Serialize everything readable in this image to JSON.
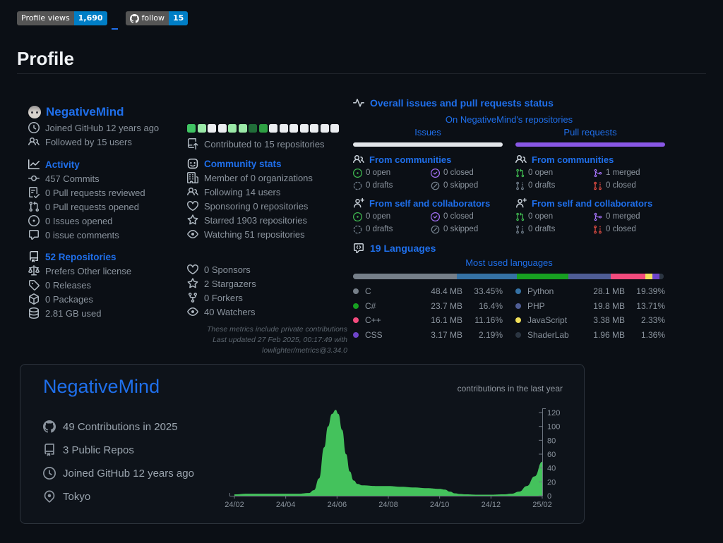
{
  "badges": {
    "views_label": "Profile views",
    "views_value": "1,690",
    "follow_label": "follow",
    "follow_value": "15"
  },
  "page": {
    "title": "Profile"
  },
  "profile": {
    "name": "NegativeMind",
    "joined": "Joined GitHub 12 years ago",
    "followers": "Followed by 15 users"
  },
  "activity": {
    "title": "Activity",
    "items": [
      {
        "label": "457 Commits"
      },
      {
        "label": "0 Pull requests reviewed"
      },
      {
        "label": "0 Pull requests opened"
      },
      {
        "label": "0 Issues opened"
      },
      {
        "label": "0 issue comments"
      }
    ]
  },
  "repositories": {
    "title": "52 Repositories",
    "items": [
      {
        "label": "Prefers Other license"
      },
      {
        "label": "0 Releases"
      },
      {
        "label": "0 Packages"
      },
      {
        "label": "2.81 GB used"
      }
    ]
  },
  "calendar": {
    "label": "Contributed to 15 repositories",
    "colors": [
      "#40c463",
      "#9be9a8",
      "#ebedf0",
      "#ebedf0",
      "#9be9a8",
      "#9be9a8",
      "#216e39",
      "#2ea043",
      "#ebedf0",
      "#ebedf0",
      "#ebedf0",
      "#ebedf0",
      "#ebedf0",
      "#ebedf0",
      "#ebedf0"
    ]
  },
  "community": {
    "title": "Community stats",
    "items": [
      {
        "label": "Member of 0 organizations"
      },
      {
        "label": "Following 14 users"
      },
      {
        "label": "Sponsoring 0 repositories"
      },
      {
        "label": "Starred 1903 repositories"
      },
      {
        "label": "Watching 51 repositories"
      }
    ]
  },
  "engagement": {
    "items": [
      {
        "label": "0 Sponsors"
      },
      {
        "label": "2 Stargazers"
      },
      {
        "label": "0 Forkers"
      },
      {
        "label": "40 Watchers"
      }
    ]
  },
  "footnotes": {
    "line1": "These metrics include private contributions",
    "line2": "Last updated 27 Feb 2025, 00:17:49 with lowlighter/metrics@3.34.0"
  },
  "status": {
    "title": "Overall issues and pull requests status",
    "subtitle": "On NegativeMind's repositories",
    "columns": [
      {
        "label": "Issues",
        "bar_color": "#e3e6ea",
        "groups": [
          {
            "title": "From communities",
            "stats": [
              {
                "label": "0 open"
              },
              {
                "label": "0 closed"
              },
              {
                "label": "0 drafts"
              },
              {
                "label": "0 skipped"
              }
            ]
          },
          {
            "title": "From self and collaborators",
            "stats": [
              {
                "label": "0 open"
              },
              {
                "label": "0 closed"
              },
              {
                "label": "0 drafts"
              },
              {
                "label": "0 skipped"
              }
            ]
          }
        ]
      },
      {
        "label": "Pull requests",
        "bar_color": "#8957e5",
        "groups": [
          {
            "title": "From communities",
            "stats": [
              {
                "label": "0 open"
              },
              {
                "label": "1 merged"
              },
              {
                "label": "0 drafts"
              },
              {
                "label": "0 closed"
              }
            ]
          },
          {
            "title": "From self and collaborators",
            "stats": [
              {
                "label": "0 open"
              },
              {
                "label": "0 merged"
              },
              {
                "label": "0 drafts"
              },
              {
                "label": "0 closed"
              }
            ]
          }
        ]
      }
    ]
  },
  "languages": {
    "title": "19 Languages",
    "subtitle": "Most used languages",
    "items": [
      {
        "name": "C",
        "color": "#767f89",
        "size": "48.4 MB",
        "percent": "33.45%",
        "value": 33.45
      },
      {
        "name": "Python",
        "color": "#3572a5",
        "size": "28.1 MB",
        "percent": "19.39%",
        "value": 19.39
      },
      {
        "name": "C#",
        "color": "#17a021",
        "size": "23.7 MB",
        "percent": "16.4%",
        "value": 16.4
      },
      {
        "name": "PHP",
        "color": "#4f5d95",
        "size": "19.8 MB",
        "percent": "13.71%",
        "value": 13.71
      },
      {
        "name": "C++",
        "color": "#f34b7d",
        "size": "16.1 MB",
        "percent": "11.16%",
        "value": 11.16
      },
      {
        "name": "JavaScript",
        "color": "#f1e05a",
        "size": "3.38 MB",
        "percent": "2.33%",
        "value": 2.33
      },
      {
        "name": "CSS",
        "color": "#6e45c9",
        "size": "3.17 MB",
        "percent": "2.19%",
        "value": 2.19
      },
      {
        "name": "ShaderLab",
        "color": "#2b3541",
        "size": "1.96 MB",
        "percent": "1.36%",
        "value": 1.36
      }
    ]
  },
  "card": {
    "name": "NegativeMind",
    "stats": [
      {
        "label": "49 Contributions in 2025"
      },
      {
        "label": "3 Public Repos"
      },
      {
        "label": "Joined GitHub 12 years ago"
      },
      {
        "label": "Tokyo"
      }
    ],
    "chart_label": "contributions in the last year"
  },
  "chart_data": {
    "type": "area",
    "title": "contributions in the last year",
    "x_ticks": [
      "24/02",
      "24/04",
      "24/06",
      "24/08",
      "24/10",
      "24/12",
      "25/02"
    ],
    "y_ticks": [
      0,
      20,
      40,
      60,
      80,
      100,
      120
    ],
    "ylim": [
      0,
      130
    ],
    "x_unit": "months since 24/02",
    "grid": false,
    "legend": "none",
    "series": [
      {
        "name": "contributions",
        "color": "#44c25c",
        "points": [
          [
            0,
            2
          ],
          [
            0.5,
            3
          ],
          [
            1,
            3
          ],
          [
            1.5,
            3
          ],
          [
            2,
            3
          ],
          [
            2.5,
            3
          ],
          [
            2.9,
            4
          ],
          [
            3.1,
            8
          ],
          [
            3.3,
            25
          ],
          [
            3.5,
            70
          ],
          [
            3.65,
            100
          ],
          [
            3.8,
            118
          ],
          [
            3.95,
            124
          ],
          [
            4.05,
            118
          ],
          [
            4.2,
            95
          ],
          [
            4.35,
            60
          ],
          [
            4.5,
            35
          ],
          [
            4.65,
            22
          ],
          [
            4.8,
            17
          ],
          [
            5,
            15
          ],
          [
            5.5,
            14
          ],
          [
            6,
            14
          ],
          [
            6.5,
            13
          ],
          [
            7,
            12
          ],
          [
            7.5,
            11
          ],
          [
            8,
            10
          ],
          [
            8.2,
            9
          ],
          [
            8.4,
            6
          ],
          [
            8.6,
            3.5
          ],
          [
            8.8,
            2.5
          ],
          [
            9,
            2
          ],
          [
            9.5,
            1.5
          ],
          [
            10,
            1.5
          ],
          [
            10.5,
            2
          ],
          [
            10.8,
            3
          ],
          [
            11.1,
            6
          ],
          [
            11.4,
            14
          ],
          [
            11.7,
            28
          ],
          [
            12,
            49
          ]
        ]
      }
    ]
  }
}
